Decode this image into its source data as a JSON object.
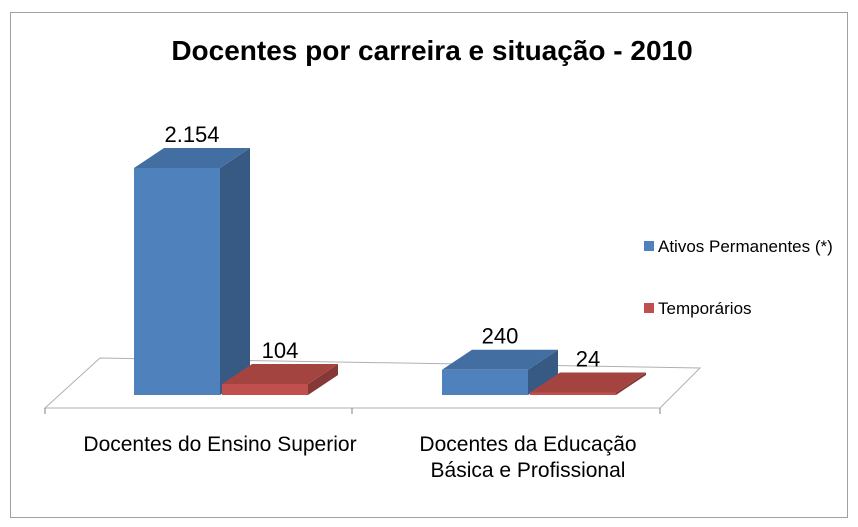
{
  "chart_data": {
    "type": "bar3d",
    "title": "Docentes por carreira e situação - 2010",
    "categories": [
      "Docentes do Ensino Superior",
      "Docentes da Educação Básica e Profissional"
    ],
    "series": [
      {
        "name": "Ativos Permanentes (*)",
        "color": "#4f81bd",
        "values": [
          2154,
          240
        ],
        "value_labels": [
          "2.154",
          "240"
        ]
      },
      {
        "name": "Temporários",
        "color": "#c0504d",
        "values": [
          104,
          24
        ],
        "value_labels": [
          "104",
          "24"
        ]
      }
    ],
    "legend": "right"
  }
}
